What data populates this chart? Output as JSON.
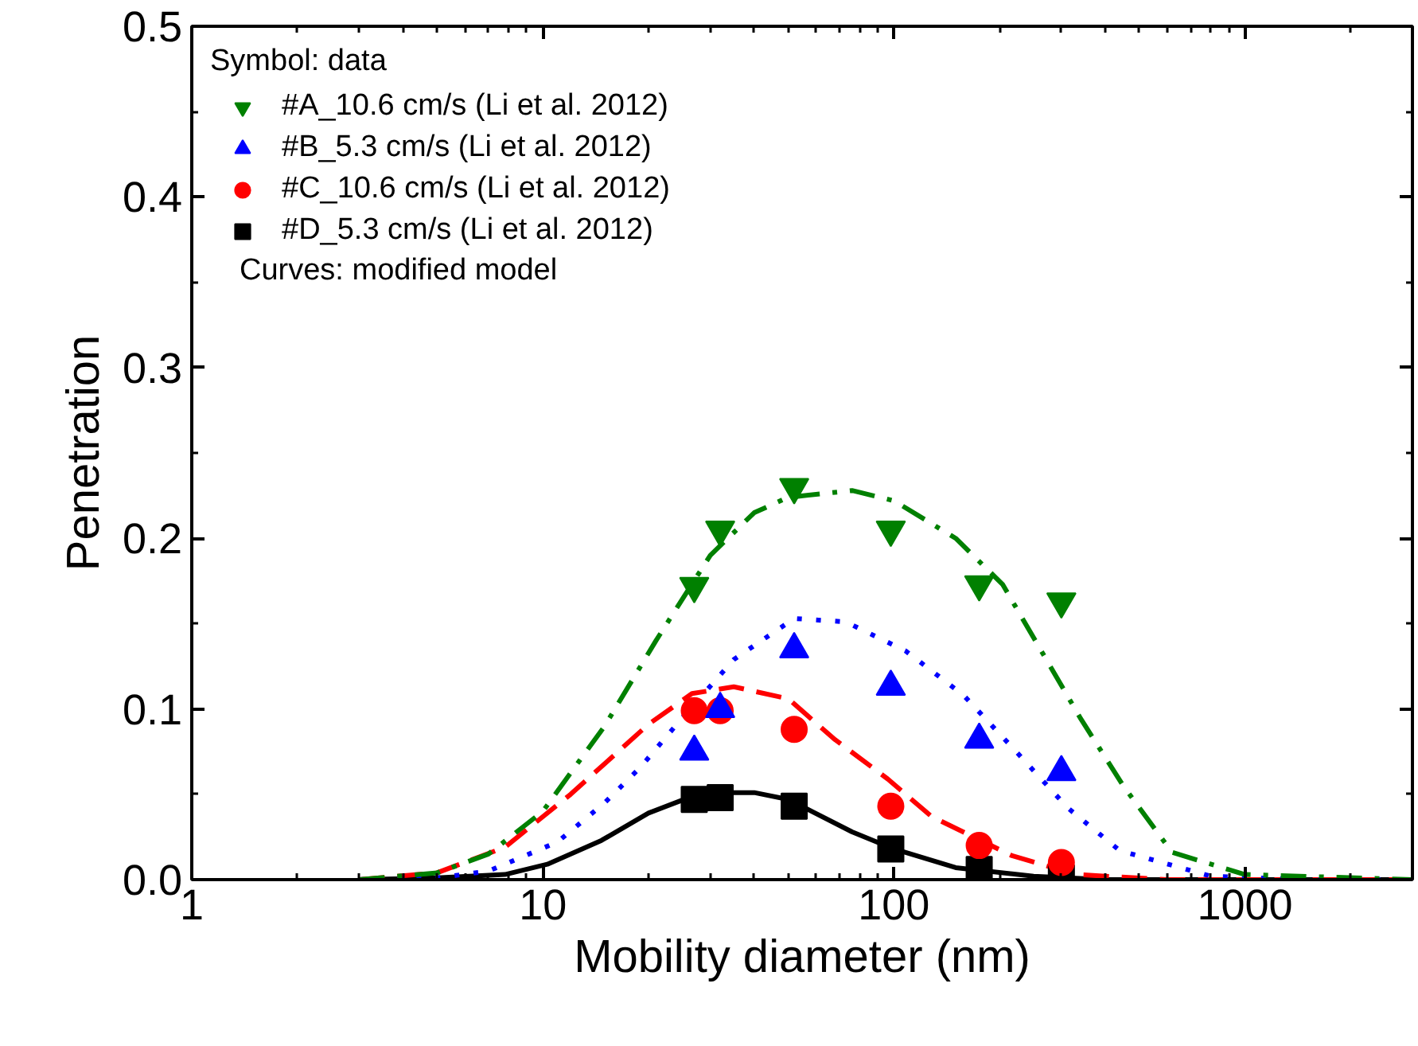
{
  "chart_data": {
    "type": "scatter",
    "xlabel": "Mobility diameter (nm)",
    "ylabel": "Penetration",
    "legend_title": "Symbol: data",
    "annotations": [
      "Curves: modified model"
    ],
    "log": "x",
    "xlim": [
      1,
      3000
    ],
    "xticks": [
      1,
      10,
      100,
      1000
    ],
    "ylim": [
      0,
      0.5
    ],
    "yticks": [
      {
        "value": 0,
        "label": "0.0"
      },
      {
        "value": 0.1,
        "label": "0.1"
      },
      {
        "value": 0.2,
        "label": "0.2"
      },
      {
        "value": 0.3,
        "label": "0.3"
      },
      {
        "value": 0.4,
        "label": "0.4"
      },
      {
        "value": 0.5,
        "label": "0.5"
      }
    ],
    "grid": false,
    "legend": "top left",
    "series": [
      {
        "name": "#A_10.6 cm/s (Li et al. 2012)",
        "color": "#008000",
        "x": [
          27,
          32,
          52,
          98,
          175,
          300
        ],
        "values": [
          0.172,
          0.205,
          0.23,
          0.205,
          0.173,
          0.163
        ]
      },
      {
        "name": "#B_5.3 cm/s (Li et al. 2012)",
        "color": "#0000ff",
        "marker": "triangle",
        "x": [
          27,
          32,
          52,
          98,
          175,
          300
        ],
        "values": [
          0.075,
          0.1,
          0.135,
          0.113,
          0.082,
          0.063
        ]
      },
      {
        "name": "#C_10.6 cm/s (Li et al. 2012)",
        "color": "#ff0000",
        "marker": "circle",
        "x": [
          27,
          32,
          52,
          98,
          175,
          300
        ],
        "values": [
          0.099,
          0.099,
          0.088,
          0.043,
          0.02,
          0.01
        ]
      },
      {
        "name": "#D_5.3 cm/s (Li et al. 2012)",
        "color": "#000000",
        "marker": "square",
        "x": [
          27,
          32,
          52,
          98,
          175,
          300
        ],
        "values": [
          0.047,
          0.048,
          0.043,
          0.018,
          0.006,
          0.001
        ]
      },
      {
        "type": "line",
        "color": "#008000",
        "line_style": "dashdot",
        "x": [
          3,
          5,
          7,
          10,
          15,
          21,
          30,
          40,
          50,
          76,
          100,
          150,
          204,
          339,
          450,
          620,
          1000,
          3000
        ],
        "values": [
          0,
          0.004,
          0.015,
          0.04,
          0.09,
          0.14,
          0.19,
          0.215,
          0.224,
          0.228,
          0.222,
          0.2,
          0.173,
          0.095,
          0.055,
          0.016,
          0.003,
          0
        ]
      },
      {
        "type": "line",
        "color": "#0000ff",
        "line_style": "dotted",
        "x": [
          3,
          5,
          7,
          11,
          15,
          19,
          25,
          35,
          52,
          73,
          108,
          158,
          223,
          313,
          440,
          800,
          1500,
          3000
        ],
        "values": [
          0,
          0.001,
          0.005,
          0.022,
          0.045,
          0.066,
          0.095,
          0.129,
          0.153,
          0.151,
          0.134,
          0.108,
          0.075,
          0.042,
          0.017,
          0.002,
          0,
          0
        ]
      },
      {
        "type": "line",
        "color": "#ff0000",
        "line_style": "dashed",
        "x": [
          3,
          5,
          7.8,
          12,
          20,
          26.6,
          35,
          50,
          68,
          96,
          128,
          217,
          330,
          600,
          3000
        ],
        "values": [
          0,
          0.004,
          0.019,
          0.05,
          0.091,
          0.109,
          0.113,
          0.106,
          0.082,
          0.059,
          0.037,
          0.014,
          0.003,
          0,
          0
        ]
      },
      {
        "type": "line",
        "color": "#000000",
        "line_style": "solid",
        "x": [
          3,
          5,
          7.8,
          10.3,
          14.7,
          20,
          26,
          32,
          40,
          50,
          76,
          100,
          150,
          250,
          400,
          3000
        ],
        "values": [
          0,
          0.001,
          0.003,
          0.009,
          0.023,
          0.039,
          0.048,
          0.051,
          0.051,
          0.047,
          0.028,
          0.018,
          0.007,
          0.002,
          0,
          0
        ]
      }
    ]
  }
}
